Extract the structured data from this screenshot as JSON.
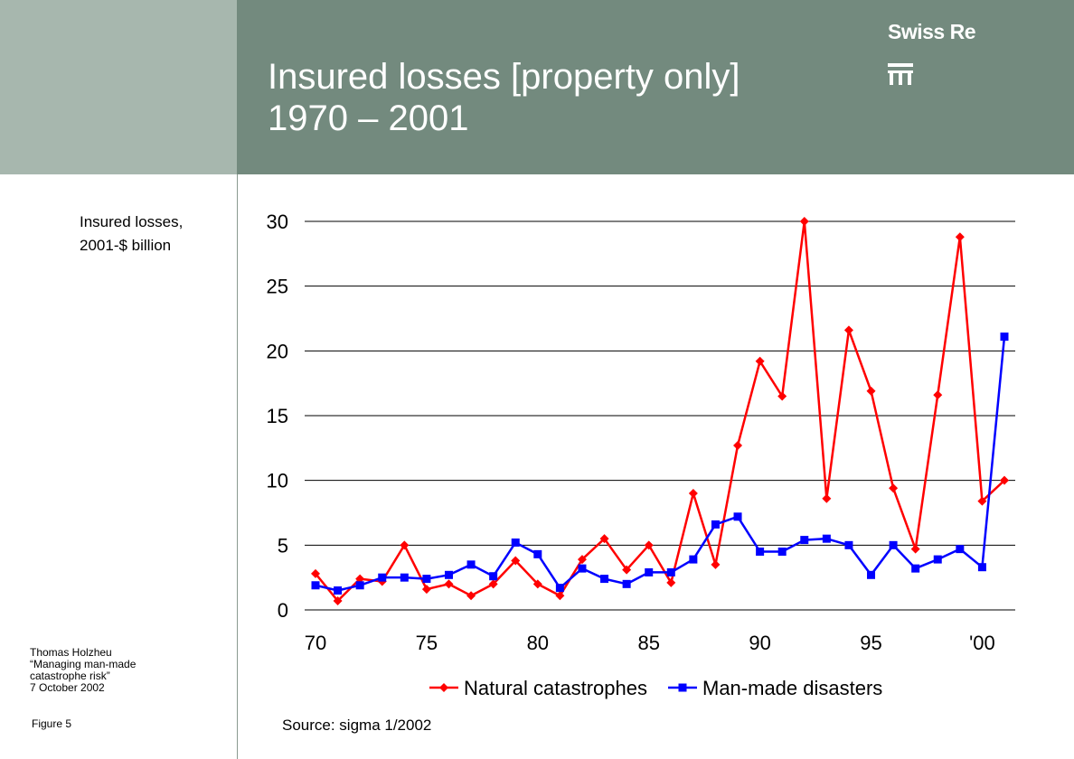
{
  "header": {
    "title_line1": "Insured losses [property only]",
    "title_line2": "1970 – 2001",
    "brand": "Swiss Re",
    "logo_icon": "swiss-re-logo-icon"
  },
  "side": {
    "ylabel_line1": "Insured losses,",
    "ylabel_line2": "2001-$ billion",
    "author_line1": "Thomas Holzheu",
    "author_line2": "“Managing man-made",
    "author_line3": "catastrophe risk”",
    "author_line4": "7 October 2002",
    "figure": "Figure 5"
  },
  "source": "Source: sigma 1/2002",
  "colors": {
    "header_bg": "#738a7e",
    "left_block_bg": "#a7b7ae",
    "natural": "#ff0000",
    "manmade": "#0000ff"
  },
  "chart_data": {
    "type": "line",
    "x": [
      1970,
      1971,
      1972,
      1973,
      1974,
      1975,
      1976,
      1977,
      1978,
      1979,
      1980,
      1981,
      1982,
      1983,
      1984,
      1985,
      1986,
      1987,
      1988,
      1989,
      1990,
      1991,
      1992,
      1993,
      1994,
      1995,
      1996,
      1997,
      1998,
      1999,
      2000,
      2001
    ],
    "xticks": [
      1970,
      1975,
      1980,
      1985,
      1990,
      1995,
      2000
    ],
    "xtick_labels": [
      "70",
      "75",
      "80",
      "85",
      "90",
      "95",
      "'00"
    ],
    "yticks": [
      0,
      5,
      10,
      15,
      20,
      25,
      30
    ],
    "ylim": [
      0,
      30
    ],
    "xlim": [
      1970,
      2001
    ],
    "grid": "horizontal",
    "legend": "bottom",
    "series": [
      {
        "name": "Natural catastrophes",
        "marker": "diamond",
        "values": [
          2.8,
          0.7,
          2.4,
          2.2,
          5.0,
          1.6,
          2.0,
          1.1,
          2.0,
          3.8,
          2.0,
          1.1,
          3.9,
          5.5,
          3.1,
          5.0,
          2.1,
          9.0,
          3.5,
          12.7,
          19.2,
          16.5,
          30.0,
          8.6,
          21.6,
          16.9,
          9.4,
          4.7,
          16.6,
          28.8,
          8.4,
          10.0
        ]
      },
      {
        "name": "Man-made disasters",
        "marker": "square",
        "values": [
          1.9,
          1.5,
          1.9,
          2.5,
          2.5,
          2.4,
          2.7,
          3.5,
          2.6,
          5.2,
          4.3,
          1.7,
          3.2,
          2.4,
          2.0,
          2.9,
          2.9,
          3.9,
          6.6,
          7.2,
          4.5,
          4.5,
          5.4,
          5.5,
          5.0,
          2.7,
          5.0,
          3.2,
          3.9,
          4.7,
          3.3,
          21.1
        ]
      }
    ]
  }
}
